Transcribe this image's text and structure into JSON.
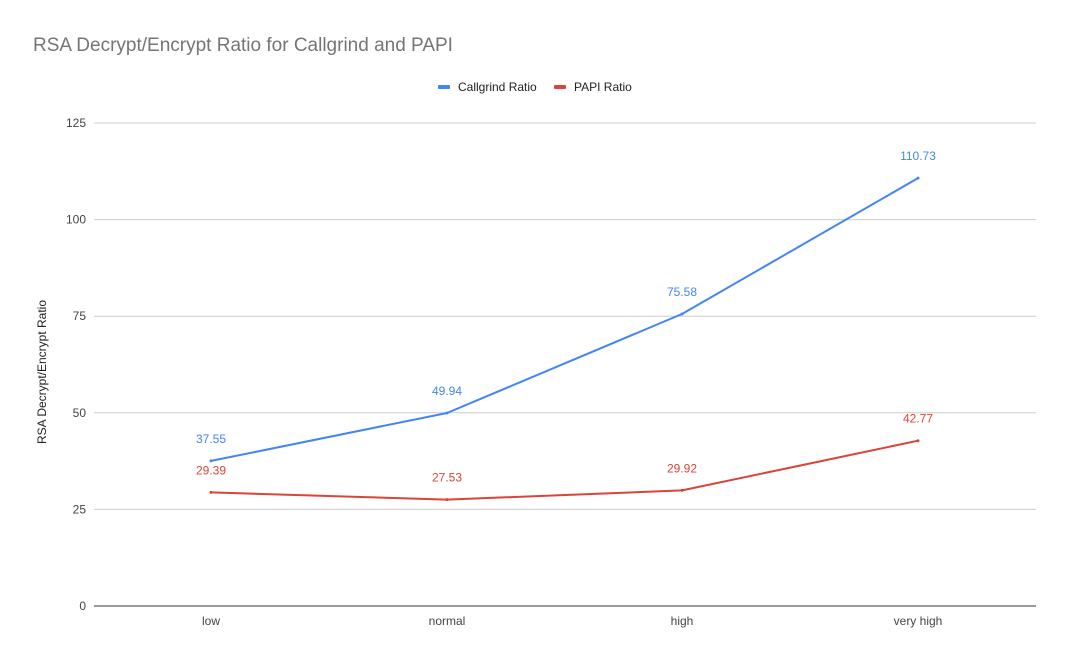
{
  "chart_data": {
    "type": "line",
    "title": "RSA Decrypt/Encrypt Ratio for Callgrind and PAPI",
    "xlabel": "",
    "ylabel": "RSA Decrypt/Encrypt Ratio",
    "categories": [
      "low",
      "normal",
      "high",
      "very high"
    ],
    "ylim": [
      0,
      125
    ],
    "yticks": [
      0,
      25,
      50,
      75,
      100,
      125
    ],
    "grid": true,
    "legend_position": "top",
    "series": [
      {
        "name": "Callgrind Ratio",
        "color": "#4285f4",
        "values": [
          37.55,
          49.94,
          75.58,
          110.73
        ],
        "labels": [
          "37.55",
          "49.94",
          "75.58",
          "110.73"
        ]
      },
      {
        "name": "PAPI Ratio",
        "color": "#db4437",
        "values": [
          29.39,
          27.53,
          29.92,
          42.77
        ],
        "labels": [
          "29.39",
          "27.53",
          "29.92",
          "42.77"
        ]
      }
    ]
  }
}
